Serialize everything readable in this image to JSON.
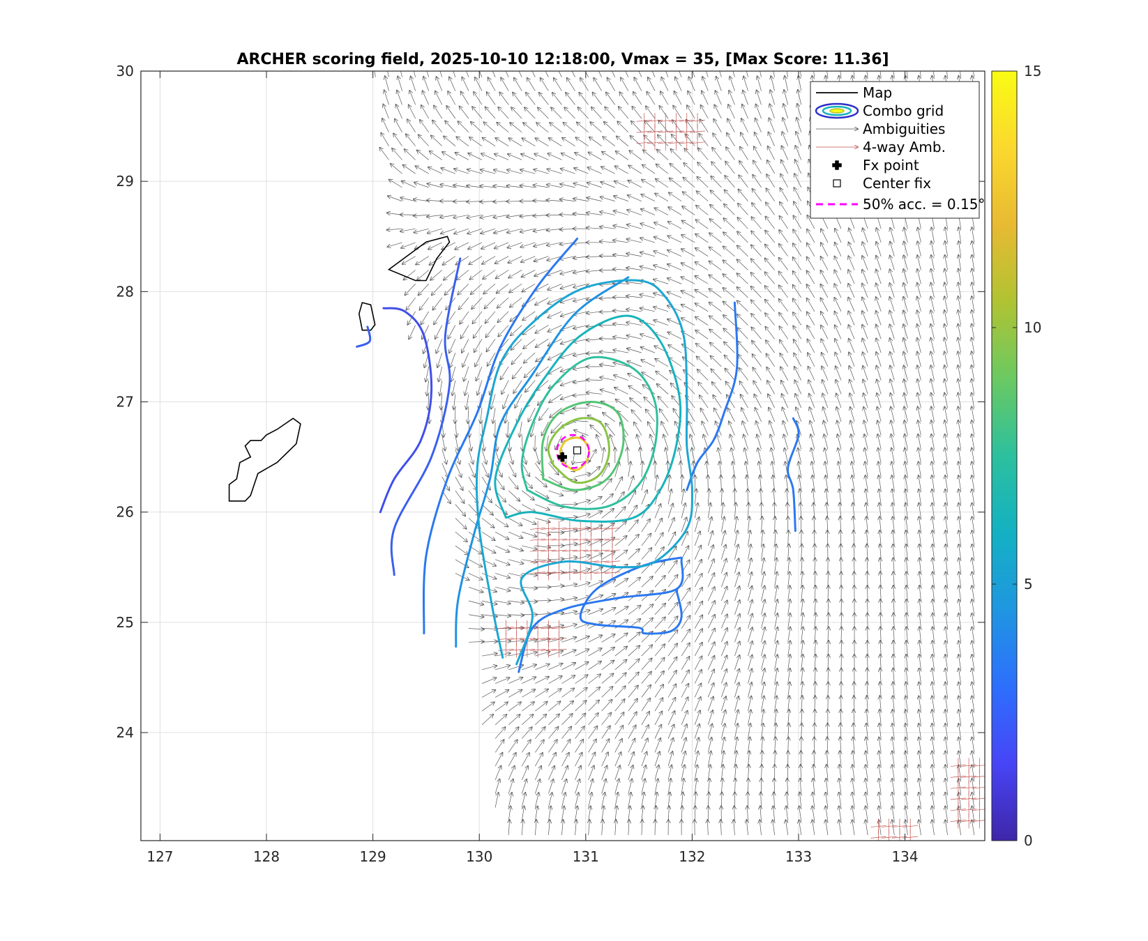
{
  "chart_data": {
    "type": "contour",
    "title": "ARCHER scoring field, 2025-10-10 12:18:00, Vmax = 35, [Max Score: 11.36]",
    "xlabel": "",
    "ylabel": "",
    "xlim": [
      126.82,
      134.75
    ],
    "ylim": [
      23.02,
      30.0
    ],
    "x_ticks": [
      "127",
      "128",
      "129",
      "130",
      "131",
      "132",
      "133",
      "134"
    ],
    "y_ticks": [
      "24",
      "25",
      "26",
      "27",
      "28",
      "29",
      "30"
    ],
    "grid": true,
    "colorbar": {
      "min": 0,
      "max": 15,
      "ticks": [
        "0",
        "5",
        "10",
        "15"
      ],
      "colormap": [
        "#3e26a8",
        "#4745f6",
        "#2d6ffd",
        "#1f96e0",
        "#13b1c3",
        "#2cc09e",
        "#6ac962",
        "#b0c332",
        "#e8ba32",
        "#fbd82e",
        "#f9fb14"
      ]
    },
    "legend": {
      "position": "top-right",
      "entries": [
        {
          "label": "Map",
          "symbol": "line",
          "color": "#000000"
        },
        {
          "label": "Combo grid",
          "symbol": "contour",
          "color": "#2d2ec9"
        },
        {
          "label": "Ambiguities",
          "symbol": "arrow",
          "color": "#555555"
        },
        {
          "label": "4-way Amb.",
          "symbol": "arrow",
          "color": "#c0504d"
        },
        {
          "label": "Fx point",
          "symbol": "plus",
          "color": "#000000"
        },
        {
          "label": "Center fix",
          "symbol": "square",
          "color": "#000000"
        },
        {
          "label": "50% acc. = 0.15°",
          "symbol": "dashed",
          "color": "#ff00ff"
        }
      ]
    },
    "fx_point": {
      "lon": 130.78,
      "lat": 26.5
    },
    "center_fix": {
      "lon": 130.92,
      "lat": 26.56
    },
    "accuracy_circle": {
      "lon": 130.88,
      "lat": 26.55,
      "radius_deg": 0.15
    },
    "max_score": 11.36,
    "contours": [
      {
        "level": 3,
        "color": "#3f4fe9",
        "points": [
          [
            129.07,
            26.0
          ],
          [
            129.2,
            26.3
          ],
          [
            129.45,
            26.65
          ],
          [
            129.55,
            27.1
          ],
          [
            129.48,
            27.6
          ],
          [
            129.3,
            27.82
          ],
          [
            129.1,
            27.85
          ]
        ]
      },
      {
        "level": 3.5,
        "color": "#3a5fee",
        "points": [
          [
            128.85,
            27.5
          ],
          [
            128.97,
            27.55
          ],
          [
            128.95,
            27.68
          ]
        ]
      },
      {
        "level": 3.5,
        "color": "#3a5fee",
        "points": [
          [
            129.2,
            25.43
          ],
          [
            129.2,
            25.85
          ],
          [
            129.55,
            26.5
          ],
          [
            129.72,
            27.15
          ],
          [
            129.68,
            27.6
          ],
          [
            129.82,
            28.3
          ]
        ]
      },
      {
        "level": 4.2,
        "color": "#2a78f0",
        "points": [
          [
            129.48,
            24.9
          ],
          [
            129.5,
            25.6
          ],
          [
            129.7,
            26.3
          ],
          [
            129.98,
            26.9
          ],
          [
            130.2,
            27.5
          ],
          [
            130.55,
            28.05
          ],
          [
            130.92,
            28.48
          ]
        ]
      },
      {
        "level": 4.2,
        "color": "#2a78f0",
        "points": [
          [
            132.4,
            27.9
          ],
          [
            132.42,
            27.3
          ],
          [
            132.3,
            26.9
          ],
          [
            132.2,
            26.65
          ],
          [
            132.05,
            26.45
          ],
          [
            131.95,
            26.2
          ]
        ]
      },
      {
        "level": 4.2,
        "color": "#2a78f0",
        "points": [
          [
            130.37,
            24.55
          ],
          [
            130.5,
            24.95
          ],
          [
            130.8,
            25.12
          ],
          [
            131.3,
            25.22
          ],
          [
            131.85,
            25.3
          ],
          [
            131.9,
            25.55
          ],
          [
            131.85,
            25.58
          ],
          [
            131.5,
            25.5
          ],
          [
            131.1,
            25.3
          ],
          [
            130.95,
            25.05
          ],
          [
            131.1,
            24.98
          ],
          [
            131.5,
            24.95
          ],
          [
            131.55,
            24.9
          ],
          [
            131.8,
            24.92
          ],
          [
            131.9,
            25.05
          ],
          [
            131.85,
            25.3
          ]
        ]
      },
      {
        "level": 4.2,
        "color": "#2a78f0",
        "points": [
          [
            132.95,
            26.85
          ],
          [
            133.0,
            26.7
          ],
          [
            132.9,
            26.4
          ],
          [
            132.95,
            26.2
          ],
          [
            132.97,
            25.83
          ]
        ]
      },
      {
        "level": 4.8,
        "color": "#1f92e2",
        "points": [
          [
            129.78,
            24.78
          ],
          [
            129.8,
            25.2
          ],
          [
            129.95,
            25.8
          ],
          [
            130.1,
            26.3
          ],
          [
            130.2,
            26.8
          ],
          [
            130.5,
            27.25
          ],
          [
            130.9,
            27.8
          ],
          [
            131.4,
            28.13
          ]
        ]
      },
      {
        "level": 5.5,
        "color": "#1ca6d2",
        "points": [
          [
            130.35,
            24.62
          ],
          [
            130.5,
            25.05
          ],
          [
            130.4,
            25.4
          ],
          [
            130.8,
            25.55
          ],
          [
            131.3,
            25.5
          ],
          [
            131.65,
            25.55
          ],
          [
            131.95,
            25.85
          ],
          [
            132.0,
            26.2
          ],
          [
            131.95,
            26.6
          ],
          [
            131.95,
            27.0
          ],
          [
            131.92,
            27.6
          ],
          [
            131.75,
            27.95
          ],
          [
            131.5,
            28.1
          ],
          [
            130.95,
            28.02
          ],
          [
            130.48,
            27.7
          ],
          [
            130.2,
            27.35
          ],
          [
            130.07,
            26.85
          ],
          [
            129.98,
            26.4
          ],
          [
            130.0,
            25.85
          ],
          [
            130.12,
            25.15
          ],
          [
            130.22,
            24.68
          ]
        ]
      },
      {
        "level": 6.5,
        "color": "#17b3bc",
        "points": [
          [
            130.25,
            25.95
          ],
          [
            130.5,
            26.0
          ],
          [
            130.95,
            25.92
          ],
          [
            131.45,
            25.95
          ],
          [
            131.7,
            26.2
          ],
          [
            131.85,
            26.6
          ],
          [
            131.88,
            27.05
          ],
          [
            131.7,
            27.55
          ],
          [
            131.4,
            27.78
          ],
          [
            130.95,
            27.6
          ],
          [
            130.6,
            27.2
          ],
          [
            130.35,
            26.8
          ],
          [
            130.15,
            26.3
          ],
          [
            130.25,
            25.95
          ]
        ]
      },
      {
        "level": 7.5,
        "color": "#2fbf9d",
        "points": [
          [
            130.45,
            26.2
          ],
          [
            130.8,
            26.05
          ],
          [
            131.2,
            26.05
          ],
          [
            131.5,
            26.25
          ],
          [
            131.65,
            26.6
          ],
          [
            131.65,
            27.0
          ],
          [
            131.45,
            27.3
          ],
          [
            131.05,
            27.4
          ],
          [
            130.7,
            27.15
          ],
          [
            130.5,
            26.8
          ],
          [
            130.4,
            26.45
          ],
          [
            130.45,
            26.2
          ]
        ]
      },
      {
        "level": 8.5,
        "color": "#52c575",
        "points": [
          [
            130.6,
            26.3
          ],
          [
            130.9,
            26.2
          ],
          [
            131.2,
            26.3
          ],
          [
            131.35,
            26.6
          ],
          [
            131.3,
            26.9
          ],
          [
            131.05,
            27.0
          ],
          [
            130.75,
            26.9
          ],
          [
            130.6,
            26.65
          ],
          [
            130.6,
            26.3
          ]
        ]
      },
      {
        "level": 9.8,
        "color": "#8ac444",
        "points": [
          [
            130.7,
            26.42
          ],
          [
            130.9,
            26.27
          ],
          [
            131.12,
            26.33
          ],
          [
            131.22,
            26.55
          ],
          [
            131.15,
            26.8
          ],
          [
            130.95,
            26.85
          ],
          [
            130.75,
            26.75
          ],
          [
            130.65,
            26.58
          ],
          [
            130.7,
            26.42
          ]
        ]
      },
      {
        "level": 11.2,
        "color": "#e8c92c",
        "points": [
          [
            130.78,
            26.45
          ],
          [
            130.9,
            26.38
          ],
          [
            131.0,
            26.45
          ],
          [
            131.03,
            26.57
          ],
          [
            130.95,
            26.67
          ],
          [
            130.82,
            26.65
          ],
          [
            130.76,
            26.55
          ],
          [
            130.78,
            26.45
          ]
        ]
      }
    ],
    "map_outlines": [
      {
        "name": "Okinawa",
        "points": [
          [
            127.65,
            26.1
          ],
          [
            127.8,
            26.1
          ],
          [
            127.85,
            26.15
          ],
          [
            127.92,
            26.35
          ],
          [
            128.1,
            26.45
          ],
          [
            128.28,
            26.62
          ],
          [
            128.32,
            26.8
          ],
          [
            128.25,
            26.85
          ],
          [
            128.1,
            26.75
          ],
          [
            128.0,
            26.7
          ],
          [
            127.95,
            26.65
          ],
          [
            127.85,
            26.65
          ],
          [
            127.8,
            26.6
          ],
          [
            127.85,
            26.5
          ],
          [
            127.75,
            26.45
          ],
          [
            127.72,
            26.3
          ],
          [
            127.65,
            26.25
          ],
          [
            127.65,
            26.1
          ]
        ]
      },
      {
        "name": "Amami",
        "points": [
          [
            129.15,
            28.2
          ],
          [
            129.5,
            28.45
          ],
          [
            129.7,
            28.5
          ],
          [
            129.72,
            28.45
          ],
          [
            129.6,
            28.3
          ],
          [
            129.5,
            28.1
          ],
          [
            129.4,
            28.1
          ],
          [
            129.15,
            28.2
          ]
        ]
      },
      {
        "name": "Tokunoshima",
        "points": [
          [
            128.9,
            27.9
          ],
          [
            128.98,
            27.88
          ],
          [
            129.02,
            27.7
          ],
          [
            128.98,
            27.65
          ],
          [
            128.9,
            27.65
          ],
          [
            128.87,
            27.8
          ],
          [
            128.9,
            27.9
          ]
        ]
      }
    ]
  }
}
